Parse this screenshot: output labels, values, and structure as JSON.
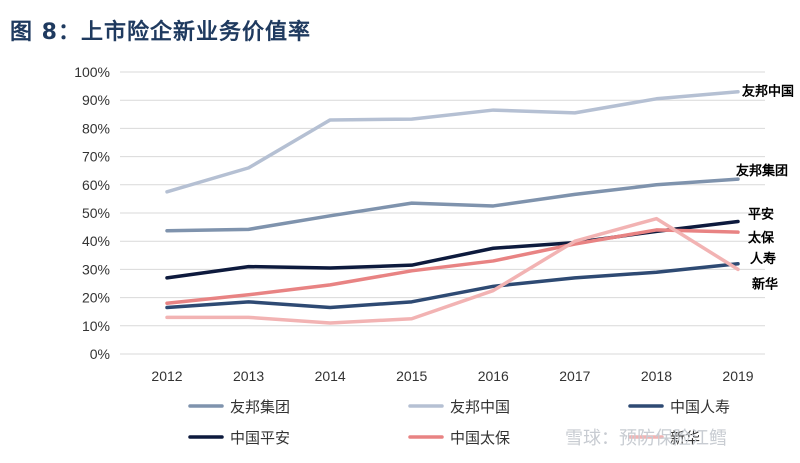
{
  "title": "图 8：上市险企新业务价值率",
  "watermark": "雪球：预防保险江鳕",
  "chart_data": {
    "type": "line",
    "x": [
      "2012",
      "2013",
      "2014",
      "2015",
      "2016",
      "2017",
      "2018",
      "2019"
    ],
    "ylim": [
      0,
      100
    ],
    "yticks": [
      "0%",
      "10%",
      "20%",
      "30%",
      "40%",
      "50%",
      "60%",
      "70%",
      "80%",
      "90%",
      "100%"
    ],
    "grid": "horizontal",
    "legend_position": "bottom",
    "series": [
      {
        "name": "友邦集团",
        "end_label": "友邦集团",
        "color": "#7f93ad",
        "values": [
          43.7,
          44.2,
          49.0,
          53.5,
          52.5,
          56.6,
          60.0,
          62.0
        ]
      },
      {
        "name": "友邦中国",
        "end_label": "友邦中国",
        "color": "#b5c0d3",
        "values": [
          57.5,
          66.0,
          83.0,
          83.3,
          86.5,
          85.5,
          90.5,
          93.0
        ]
      },
      {
        "name": "中国人寿",
        "end_label": "人寿",
        "color": "#2e4a73",
        "values": [
          16.5,
          18.5,
          16.5,
          18.5,
          24.0,
          27.0,
          29.0,
          32.0
        ]
      },
      {
        "name": "中国平安",
        "end_label": "平安",
        "color": "#0d1a3d",
        "values": [
          27.0,
          31.0,
          30.5,
          31.5,
          37.5,
          39.5,
          43.5,
          47.0
        ]
      },
      {
        "name": "中国太保",
        "end_label": "太保",
        "color": "#e88383",
        "values": [
          18.0,
          21.0,
          24.5,
          29.5,
          33.0,
          39.0,
          44.0,
          43.2
        ]
      },
      {
        "name": "新华",
        "end_label": "新华",
        "color": "#f2b3b3",
        "values": [
          13.0,
          13.0,
          11.0,
          12.5,
          22.5,
          40.0,
          48.0,
          30.0
        ]
      }
    ]
  }
}
